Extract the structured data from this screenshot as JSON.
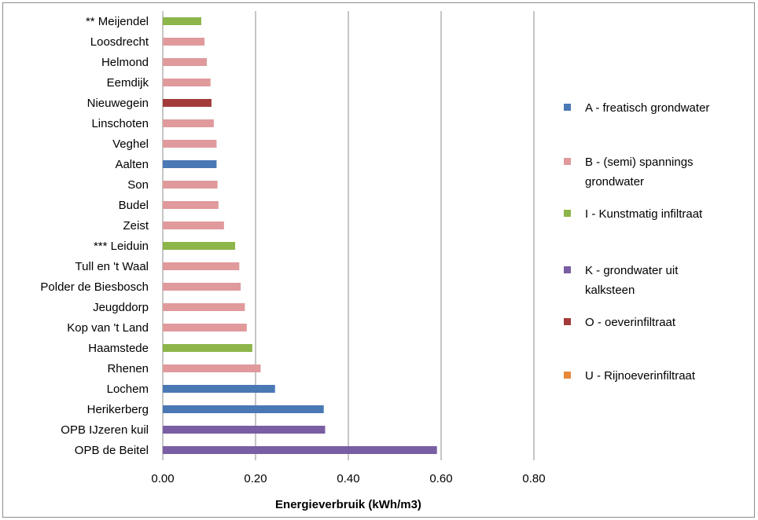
{
  "chart_data": {
    "type": "bar",
    "orientation": "horizontal",
    "xlabel": "Energieverbruik (kWh/m3)",
    "ylabel": "",
    "xlim": [
      0,
      0.8
    ],
    "xticks": [
      0.0,
      0.2,
      0.4,
      0.6,
      0.8
    ],
    "xtick_labels": [
      "0.00",
      "0.20",
      "0.40",
      "0.60",
      "0.80"
    ],
    "grid": "vertical",
    "legend_position": "right",
    "legend": [
      {
        "key": "A",
        "label": "A - freatisch grondwater",
        "lines": [
          "A - freatisch grondwater"
        ],
        "color": "#4a78b5"
      },
      {
        "key": "B",
        "label": "B  - (semi) spannings grondwater",
        "lines": [
          "B  - (semi) spannings",
          "grondwater"
        ],
        "color": "#e09a9c"
      },
      {
        "key": "I",
        "label": "I - Kunstmatig infiltraat",
        "lines": [
          "I - Kunstmatig infiltraat"
        ],
        "color": "#8cb54a"
      },
      {
        "key": "K",
        "label": "K - grondwater uit kalksteen",
        "lines": [
          "K - grondwater uit",
          "kalksteen"
        ],
        "color": "#7a5ea3"
      },
      {
        "key": "O",
        "label": "O - oeverinfiltraat",
        "lines": [
          "O - oeverinfiltraat"
        ],
        "color": "#a33a3a"
      },
      {
        "key": "U",
        "label": "U - Rijnoeverinfiltraat",
        "lines": [
          "U - Rijnoeverinfiltraat"
        ],
        "color": "#e8893a"
      }
    ],
    "bars": [
      {
        "category": "** Meijendel",
        "value": 0.083,
        "group": "I"
      },
      {
        "category": "Loosdrecht",
        "value": 0.09,
        "group": "B"
      },
      {
        "category": "Helmond",
        "value": 0.095,
        "group": "B"
      },
      {
        "category": "Eemdijk",
        "value": 0.103,
        "group": "B"
      },
      {
        "category": "Nieuwegein",
        "value": 0.105,
        "group": "O"
      },
      {
        "category": "Linschoten",
        "value": 0.11,
        "group": "B"
      },
      {
        "category": "Veghel",
        "value": 0.116,
        "group": "B"
      },
      {
        "category": "Aalten",
        "value": 0.116,
        "group": "A"
      },
      {
        "category": "Son",
        "value": 0.118,
        "group": "B"
      },
      {
        "category": "Budel",
        "value": 0.12,
        "group": "B"
      },
      {
        "category": "Zeist",
        "value": 0.132,
        "group": "B"
      },
      {
        "category": "*** Leiduin",
        "value": 0.156,
        "group": "I"
      },
      {
        "category": "Tull en 't Waal",
        "value": 0.165,
        "group": "B"
      },
      {
        "category": "Polder de Biesbosch",
        "value": 0.168,
        "group": "B"
      },
      {
        "category": "Jeugddorp",
        "value": 0.177,
        "group": "B"
      },
      {
        "category": "Kop van 't Land",
        "value": 0.181,
        "group": "B"
      },
      {
        "category": "Haamstede",
        "value": 0.193,
        "group": "I"
      },
      {
        "category": "Rhenen",
        "value": 0.211,
        "group": "B"
      },
      {
        "category": "Lochem",
        "value": 0.242,
        "group": "A"
      },
      {
        "category": "Herikerberg",
        "value": 0.347,
        "group": "A"
      },
      {
        "category": "OPB IJzeren kuil",
        "value": 0.35,
        "group": "K"
      },
      {
        "category": "OPB de Beitel",
        "value": 0.591,
        "group": "K"
      }
    ]
  }
}
